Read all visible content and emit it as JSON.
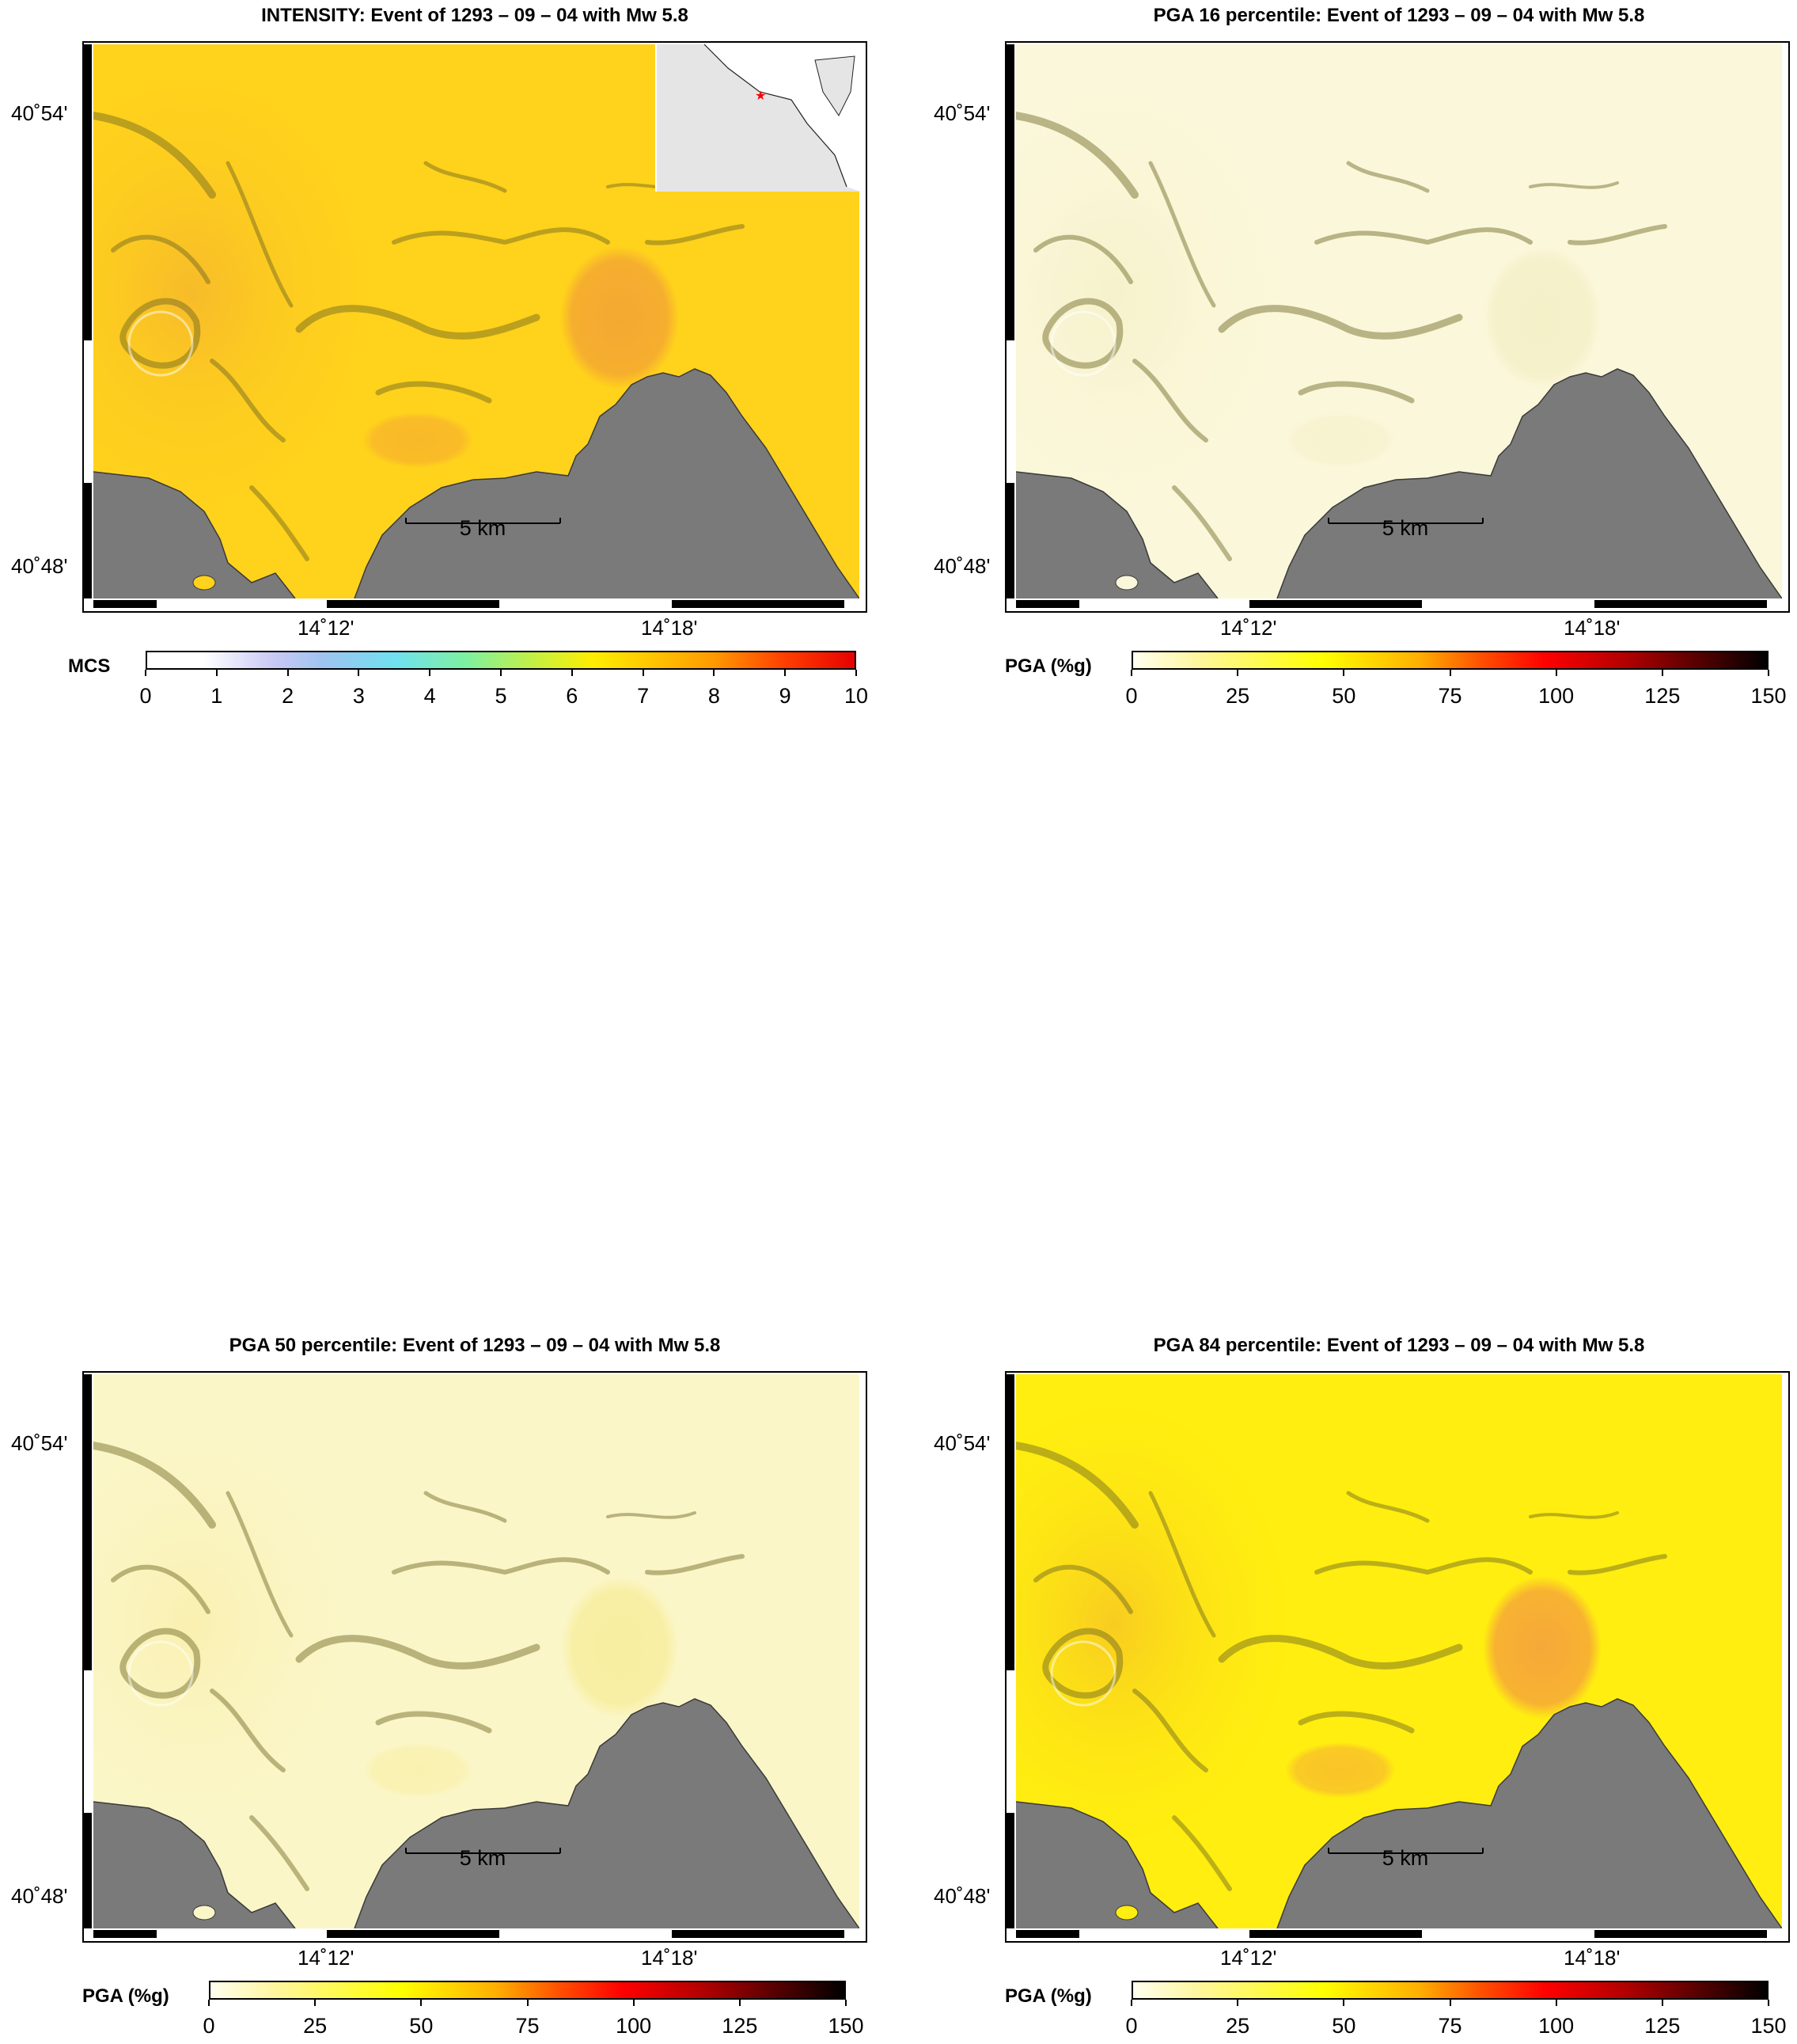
{
  "panels": [
    {
      "id": "intensity",
      "title": "INTENSITY: Event of 1293 – 09 – 04 with Mw 5.8",
      "lat_labels": [
        "40˚54'",
        "40˚48'"
      ],
      "lon_labels": [
        "14˚12'",
        "14˚18'"
      ],
      "scale_label": "5 km",
      "colorbar_label": "MCS",
      "colorbar_ticks": [
        "0",
        "1",
        "2",
        "3",
        "4",
        "5",
        "6",
        "7",
        "8",
        "9",
        "10"
      ],
      "colorbar_gradient": "linear-gradient(to right,#ffffff 0%,#ffffff 8%,#c8c8f5 18%,#9ec4f0 25%,#6fe0f0 35%,#7ef0a0 45%,#c6f040 55%,#ffee00 63%,#ffcc00 70%,#ff9a00 80%,#ff4000 90%,#e80000 100%)",
      "field": {
        "base": "#ffd21c",
        "hot": "#f4a832",
        "mid": "#f7bb2a"
      },
      "has_inset": true
    },
    {
      "id": "pga16",
      "title": "PGA 16 percentile: Event of 1293 – 09 – 04 with Mw 5.8",
      "lat_labels": [
        "40˚54'",
        "40˚48'"
      ],
      "lon_labels": [
        "14˚12'",
        "14˚18'"
      ],
      "scale_label": "5 km",
      "colorbar_label": "PGA (%g)",
      "colorbar_ticks": [
        "0",
        "25",
        "50",
        "75",
        "100",
        "125",
        "150"
      ],
      "colorbar_gradient": "linear-gradient(to right,#fffff0 0%,#fff6a0 10%,#ffff00 30%,#ffb000 45%,#ff5000 55%,#ff0000 65%,#b00000 78%,#500000 90%,#000000 100%)",
      "field": {
        "base": "#fbf7da",
        "hot": "#f4f0c8",
        "mid": "#f6f2cc"
      },
      "has_inset": false
    },
    {
      "id": "pga50",
      "title": "PGA 50 percentile: Event of 1293 – 09 – 04 with Mw 5.8",
      "lat_labels": [
        "40˚54'",
        "40˚48'"
      ],
      "lon_labels": [
        "14˚12'",
        "14˚18'"
      ],
      "scale_label": "5 km",
      "colorbar_label": "PGA (%g)",
      "colorbar_ticks": [
        "0",
        "25",
        "50",
        "75",
        "100",
        "125",
        "150"
      ],
      "colorbar_gradient": "linear-gradient(to right,#fffff0 0%,#fff6a0 10%,#ffff00 30%,#ffb000 45%,#ff5000 55%,#ff0000 65%,#b00000 78%,#500000 90%,#000000 100%)",
      "field": {
        "base": "#fbf6c8",
        "hot": "#f8eea0",
        "mid": "#f9f0b0"
      },
      "has_inset": false
    },
    {
      "id": "pga84",
      "title": "PGA 84 percentile: Event of 1293 – 09 – 04 with Mw 5.8",
      "lat_labels": [
        "40˚54'",
        "40˚48'"
      ],
      "lon_labels": [
        "14˚12'",
        "14˚18'"
      ],
      "scale_label": "5 km",
      "colorbar_label": "PGA (%g)",
      "colorbar_ticks": [
        "0",
        "25",
        "50",
        "75",
        "100",
        "125",
        "150"
      ],
      "colorbar_gradient": "linear-gradient(to right,#fffff0 0%,#fff6a0 10%,#ffff00 30%,#ffb000 45%,#ff5000 55%,#ff0000 65%,#b00000 78%,#500000 90%,#000000 100%)",
      "field": {
        "base": "#ffee10",
        "hot": "#f6a838",
        "mid": "#f8cc20"
      },
      "has_inset": false
    }
  ],
  "colors": {
    "sea": "#7a7a7a",
    "relief_dark": "#6b6420",
    "inset_land": "#e5e5e5",
    "epicenter": "#ff0000"
  }
}
